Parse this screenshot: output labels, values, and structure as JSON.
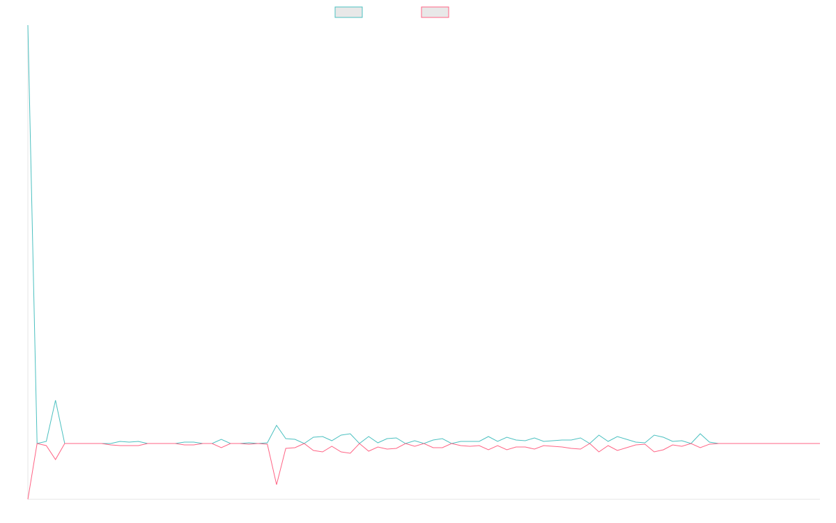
{
  "chart_data": {
    "type": "line",
    "title": "",
    "xlabel": "",
    "ylabel": "",
    "ylim": [
      -8,
      60
    ],
    "grid": false,
    "legend": "top-center",
    "x": [
      1,
      2,
      3,
      4,
      5,
      6,
      7,
      8,
      9,
      10,
      11,
      12,
      13,
      14,
      15,
      16,
      17,
      18,
      19,
      20,
      21,
      22,
      23,
      24,
      25,
      26,
      27,
      28,
      29,
      30,
      31,
      32,
      33,
      34,
      35,
      36,
      37,
      38,
      39,
      40,
      41,
      42,
      43,
      44,
      45,
      46,
      47,
      48,
      49,
      50,
      51,
      52,
      53,
      54,
      55,
      56,
      57,
      58,
      59,
      60,
      61,
      62,
      63,
      64,
      65,
      66,
      67,
      68,
      69,
      70,
      71,
      72,
      73,
      74,
      74,
      75,
      76,
      77,
      78,
      79,
      80,
      81,
      82,
      83,
      84,
      85,
      86
    ],
    "series": [
      {
        "name": "",
        "color": "#4bc0c0",
        "fill": "#e8e8e8",
        "values": [
          60,
          0,
          0.3,
          6.2,
          0,
          0,
          0,
          0,
          0,
          0,
          0.3,
          0.2,
          0.3,
          0,
          0,
          0,
          0,
          0.2,
          0.2,
          0,
          0,
          0.6,
          0,
          0,
          0.1,
          0,
          0.1,
          2.6,
          0.7,
          0.6,
          0,
          0.9,
          1.0,
          0.4,
          1.2,
          1.4,
          0,
          1.0,
          0.1,
          0.7,
          0.8,
          0,
          0.4,
          0,
          0.5,
          0.7,
          0,
          0.3,
          0.3,
          0.3,
          1.0,
          0.3,
          0.9,
          0.5,
          0.4,
          0.8,
          0.3,
          0.4,
          0.5,
          0.5,
          0.8,
          0,
          1.2,
          0.3,
          1.0,
          0.6,
          0.2,
          0.1,
          1.2,
          0.9,
          0.3,
          0.4,
          0,
          1.4,
          0.2,
          0,
          0,
          0,
          0,
          0,
          0,
          0,
          0,
          0,
          0,
          0,
          0
        ]
      },
      {
        "name": "",
        "color": "#ff6384",
        "fill": "#e8e8e8",
        "values": [
          -8,
          0,
          -0.3,
          -2.3,
          0,
          0,
          0,
          0,
          0,
          -0.2,
          -0.3,
          -0.3,
          -0.3,
          0,
          0,
          0,
          0,
          -0.2,
          -0.2,
          0,
          0,
          -0.6,
          0,
          0,
          -0.1,
          0,
          -0.1,
          -5.9,
          -0.7,
          -0.6,
          0,
          -1.0,
          -1.2,
          -0.4,
          -1.2,
          -1.4,
          0,
          -1.1,
          -0.5,
          -0.8,
          -0.7,
          0,
          -0.4,
          0,
          -0.6,
          -0.6,
          0,
          -0.3,
          -0.4,
          -0.3,
          -0.9,
          -0.3,
          -0.9,
          -0.5,
          -0.5,
          -0.8,
          -0.3,
          -0.4,
          -0.5,
          -0.7,
          -0.8,
          0,
          -1.2,
          -0.3,
          -1.0,
          -0.6,
          -0.2,
          -0.1,
          -1.2,
          -0.9,
          -0.2,
          -0.4,
          0,
          -0.6,
          -0.1,
          0,
          0,
          0,
          0,
          0,
          0,
          0,
          0,
          0,
          0,
          0,
          0
        ]
      }
    ]
  }
}
